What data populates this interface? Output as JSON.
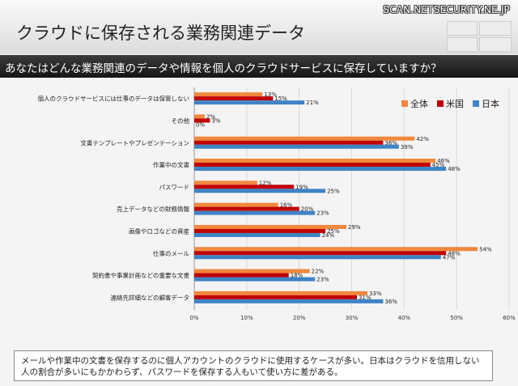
{
  "site": "SCAN.NETSECURITY.NE.JP",
  "header_title": "クラウドに保存される業務関連データ",
  "question": "あなたはどんな業務関連のデータや情報を個人のクラウドサービスに保存していますか？",
  "note": "メールや作業中の文書を保存するのに個人アカウントのクラウドに使用するケースが多い。日本はクラウドを信用しない人の割合が多いにもかかわらず、パスワードを保存する人もいて使い方に差がある。",
  "colors": {
    "全体": "#f0883d",
    "米国": "#c00000",
    "日本": "#3f83c6"
  },
  "chart_data": {
    "type": "bar",
    "orientation": "horizontal",
    "categories": [
      "個人のクラウドサービスには仕事のデータは保管しない",
      "その他",
      "文書テンプレートやプレゼンテーション",
      "作業中の文書",
      "パスワード",
      "売上データなどの財務情報",
      "画像やロゴなどの資産",
      "仕事のメール",
      "契約書や事業計画などの重要な文書",
      "連絡先詳細などの顧客データ"
    ],
    "series": [
      {
        "name": "全体",
        "values": [
          13,
          2,
          42,
          46,
          12,
          16,
          29,
          54,
          22,
          33
        ]
      },
      {
        "name": "米国",
        "values": [
          15,
          3,
          36,
          45,
          19,
          20,
          25,
          48,
          18,
          31
        ]
      },
      {
        "name": "日本",
        "values": [
          21,
          0,
          39,
          48,
          25,
          23,
          24,
          47,
          23,
          36
        ]
      }
    ],
    "xlim": [
      0,
      60
    ],
    "ticks": [
      0,
      10,
      20,
      30,
      40,
      50,
      60
    ],
    "tick_labels": [
      "0%",
      "10%",
      "20%",
      "30%",
      "40%",
      "50%",
      "60%"
    ],
    "value_suffix": "%",
    "legend_position": "top-right"
  }
}
